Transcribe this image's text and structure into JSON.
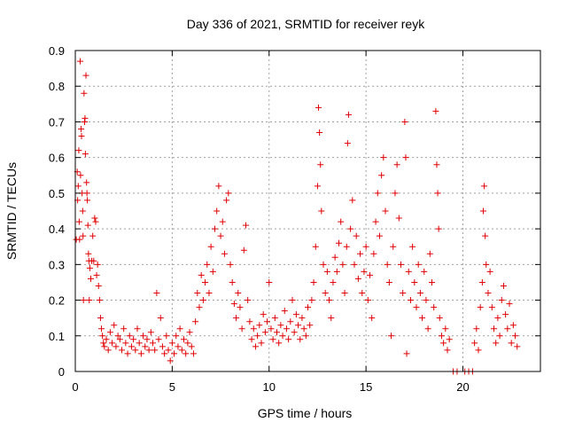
{
  "chart_data": {
    "type": "scatter",
    "title": "Day 336 of 2021, SRMTID for receiver reyk",
    "xlabel": "GPS time / hours",
    "ylabel": "SRMTID / TECUs",
    "xlim": [
      0,
      24
    ],
    "ylim": [
      0,
      0.9
    ],
    "xticks": [
      0,
      5,
      10,
      15,
      20
    ],
    "xtick_labels": [
      "0",
      "5",
      "10",
      "15",
      "20"
    ],
    "yticks": [
      0,
      0.1,
      0.2,
      0.3,
      0.4,
      0.5,
      0.6,
      0.7,
      0.8,
      0.9
    ],
    "ytick_labels": [
      "0",
      "0.1",
      "0.2",
      "0.3",
      "0.4",
      "0.5",
      "0.6",
      "0.7",
      "0.8",
      "0.9"
    ],
    "grid": true,
    "marker": "+",
    "marker_color": "#e00000",
    "series": [
      {
        "name": "SRMTID",
        "points": [
          [
            0.05,
            0.37
          ],
          [
            0.1,
            0.56
          ],
          [
            0.12,
            0.48
          ],
          [
            0.15,
            0.52
          ],
          [
            0.18,
            0.62
          ],
          [
            0.2,
            0.42
          ],
          [
            0.22,
            0.37
          ],
          [
            0.25,
            0.87
          ],
          [
            0.27,
            0.55
          ],
          [
            0.3,
            0.68
          ],
          [
            0.32,
            0.66
          ],
          [
            0.35,
            0.5
          ],
          [
            0.38,
            0.45
          ],
          [
            0.4,
            0.38
          ],
          [
            0.42,
            0.2
          ],
          [
            0.45,
            0.78
          ],
          [
            0.48,
            0.7
          ],
          [
            0.5,
            0.71
          ],
          [
            0.52,
            0.61
          ],
          [
            0.55,
            0.83
          ],
          [
            0.58,
            0.53
          ],
          [
            0.6,
            0.5
          ],
          [
            0.62,
            0.48
          ],
          [
            0.65,
            0.41
          ],
          [
            0.68,
            0.33
          ],
          [
            0.7,
            0.31
          ],
          [
            0.72,
            0.2
          ],
          [
            0.75,
            0.29
          ],
          [
            0.8,
            0.26
          ],
          [
            0.85,
            0.31
          ],
          [
            0.9,
            0.38
          ],
          [
            0.95,
            0.31
          ],
          [
            1.0,
            0.43
          ],
          [
            1.05,
            0.42
          ],
          [
            1.1,
            0.27
          ],
          [
            1.15,
            0.3
          ],
          [
            1.2,
            0.24
          ],
          [
            1.25,
            0.2
          ],
          [
            1.3,
            0.15
          ],
          [
            1.35,
            0.12
          ],
          [
            1.4,
            0.1
          ],
          [
            1.45,
            0.08
          ],
          [
            1.5,
            0.07
          ],
          [
            1.6,
            0.09
          ],
          [
            1.7,
            0.06
          ],
          [
            1.8,
            0.11
          ],
          [
            1.9,
            0.08
          ],
          [
            2.0,
            0.13
          ],
          [
            2.1,
            0.07
          ],
          [
            2.2,
            0.1
          ],
          [
            2.3,
            0.09
          ],
          [
            2.4,
            0.06
          ],
          [
            2.5,
            0.12
          ],
          [
            2.6,
            0.08
          ],
          [
            2.7,
            0.05
          ],
          [
            2.8,
            0.1
          ],
          [
            2.9,
            0.07
          ],
          [
            3.0,
            0.09
          ],
          [
            3.1,
            0.06
          ],
          [
            3.2,
            0.12
          ],
          [
            3.3,
            0.08
          ],
          [
            3.4,
            0.05
          ],
          [
            3.5,
            0.1
          ],
          [
            3.6,
            0.07
          ],
          [
            3.7,
            0.09
          ],
          [
            3.8,
            0.06
          ],
          [
            3.9,
            0.11
          ],
          [
            4.0,
            0.08
          ],
          [
            4.1,
            0.06
          ],
          [
            4.2,
            0.22
          ],
          [
            4.3,
            0.09
          ],
          [
            4.4,
            0.15
          ],
          [
            4.5,
            0.07
          ],
          [
            4.6,
            0.05
          ],
          [
            4.7,
            0.1
          ],
          [
            4.8,
            0.06
          ],
          [
            4.9,
            0.03
          ],
          [
            5.0,
            0.08
          ],
          [
            5.1,
            0.05
          ],
          [
            5.2,
            0.1
          ],
          [
            5.3,
            0.07
          ],
          [
            5.4,
            0.12
          ],
          [
            5.5,
            0.06
          ],
          [
            5.6,
            0.09
          ],
          [
            5.7,
            0.05
          ],
          [
            5.8,
            0.08
          ],
          [
            5.9,
            0.11
          ],
          [
            6.0,
            0.07
          ],
          [
            6.1,
            0.05
          ],
          [
            6.2,
            0.14
          ],
          [
            6.3,
            0.22
          ],
          [
            6.4,
            0.18
          ],
          [
            6.5,
            0.27
          ],
          [
            6.6,
            0.2
          ],
          [
            6.7,
            0.25
          ],
          [
            6.8,
            0.3
          ],
          [
            6.9,
            0.22
          ],
          [
            7.0,
            0.35
          ],
          [
            7.1,
            0.28
          ],
          [
            7.2,
            0.4
          ],
          [
            7.3,
            0.45
          ],
          [
            7.4,
            0.52
          ],
          [
            7.5,
            0.38
          ],
          [
            7.6,
            0.42
          ],
          [
            7.7,
            0.33
          ],
          [
            7.8,
            0.48
          ],
          [
            7.9,
            0.5
          ],
          [
            8.0,
            0.3
          ],
          [
            8.1,
            0.25
          ],
          [
            8.2,
            0.19
          ],
          [
            8.3,
            0.15
          ],
          [
            8.4,
            0.22
          ],
          [
            8.5,
            0.18
          ],
          [
            8.6,
            0.12
          ],
          [
            8.7,
            0.34
          ],
          [
            8.8,
            0.41
          ],
          [
            8.9,
            0.2
          ],
          [
            9.0,
            0.14
          ],
          [
            9.1,
            0.09
          ],
          [
            9.2,
            0.12
          ],
          [
            9.3,
            0.07
          ],
          [
            9.4,
            0.1
          ],
          [
            9.5,
            0.13
          ],
          [
            9.6,
            0.08
          ],
          [
            9.7,
            0.16
          ],
          [
            9.8,
            0.11
          ],
          [
            9.9,
            0.14
          ],
          [
            10.0,
            0.25
          ],
          [
            10.1,
            0.12
          ],
          [
            10.2,
            0.09
          ],
          [
            10.3,
            0.15
          ],
          [
            10.4,
            0.11
          ],
          [
            10.5,
            0.08
          ],
          [
            10.6,
            0.13
          ],
          [
            10.7,
            0.1
          ],
          [
            10.8,
            0.17
          ],
          [
            10.9,
            0.12
          ],
          [
            11.0,
            0.09
          ],
          [
            11.1,
            0.14
          ],
          [
            11.2,
            0.2
          ],
          [
            11.3,
            0.11
          ],
          [
            11.4,
            0.16
          ],
          [
            11.5,
            0.13
          ],
          [
            11.6,
            0.09
          ],
          [
            11.7,
            0.15
          ],
          [
            11.8,
            0.12
          ],
          [
            11.9,
            0.1
          ],
          [
            12.0,
            0.18
          ],
          [
            12.1,
            0.13
          ],
          [
            12.2,
            0.2
          ],
          [
            12.3,
            0.25
          ],
          [
            12.4,
            0.35
          ],
          [
            12.5,
            0.52
          ],
          [
            12.55,
            0.74
          ],
          [
            12.6,
            0.67
          ],
          [
            12.65,
            0.58
          ],
          [
            12.7,
            0.45
          ],
          [
            12.8,
            0.3
          ],
          [
            12.9,
            0.22
          ],
          [
            13.0,
            0.28
          ],
          [
            13.1,
            0.2
          ],
          [
            13.2,
            0.15
          ],
          [
            13.3,
            0.25
          ],
          [
            13.4,
            0.32
          ],
          [
            13.5,
            0.28
          ],
          [
            13.6,
            0.36
          ],
          [
            13.7,
            0.42
          ],
          [
            13.8,
            0.3
          ],
          [
            13.9,
            0.22
          ],
          [
            14.0,
            0.35
          ],
          [
            14.05,
            0.64
          ],
          [
            14.1,
            0.72
          ],
          [
            14.2,
            0.4
          ],
          [
            14.3,
            0.48
          ],
          [
            14.4,
            0.3
          ],
          [
            14.5,
            0.38
          ],
          [
            14.6,
            0.26
          ],
          [
            14.7,
            0.33
          ],
          [
            14.8,
            0.22
          ],
          [
            14.9,
            0.28
          ],
          [
            15.0,
            0.35
          ],
          [
            15.1,
            0.2
          ],
          [
            15.2,
            0.27
          ],
          [
            15.3,
            0.15
          ],
          [
            15.4,
            0.33
          ],
          [
            15.5,
            0.42
          ],
          [
            15.6,
            0.5
          ],
          [
            15.7,
            0.38
          ],
          [
            15.8,
            0.55
          ],
          [
            15.9,
            0.6
          ],
          [
            16.0,
            0.45
          ],
          [
            16.1,
            0.3
          ],
          [
            16.2,
            0.25
          ],
          [
            16.3,
            0.1
          ],
          [
            16.4,
            0.35
          ],
          [
            16.5,
            0.5
          ],
          [
            16.6,
            0.58
          ],
          [
            16.7,
            0.43
          ],
          [
            16.8,
            0.3
          ],
          [
            16.9,
            0.22
          ],
          [
            17.0,
            0.7
          ],
          [
            17.05,
            0.6
          ],
          [
            17.1,
            0.05
          ],
          [
            17.2,
            0.28
          ],
          [
            17.3,
            0.2
          ],
          [
            17.4,
            0.35
          ],
          [
            17.5,
            0.25
          ],
          [
            17.6,
            0.18
          ],
          [
            17.7,
            0.3
          ],
          [
            17.8,
            0.22
          ],
          [
            17.9,
            0.15
          ],
          [
            18.0,
            0.28
          ],
          [
            18.1,
            0.2
          ],
          [
            18.2,
            0.12
          ],
          [
            18.3,
            0.33
          ],
          [
            18.4,
            0.25
          ],
          [
            18.5,
            0.18
          ],
          [
            18.6,
            0.73
          ],
          [
            18.65,
            0.58
          ],
          [
            18.7,
            0.5
          ],
          [
            18.75,
            0.4
          ],
          [
            18.8,
            0.15
          ],
          [
            18.9,
            0.1
          ],
          [
            19.0,
            0.08
          ],
          [
            19.1,
            0.12
          ],
          [
            19.2,
            0.06
          ],
          [
            19.3,
            0.09
          ],
          [
            19.5,
            0.0
          ],
          [
            19.7,
            0.0
          ],
          [
            20.1,
            0.0
          ],
          [
            20.3,
            0.0
          ],
          [
            20.5,
            0.0
          ],
          [
            20.6,
            0.08
          ],
          [
            20.7,
            0.12
          ],
          [
            20.8,
            0.06
          ],
          [
            20.9,
            0.18
          ],
          [
            21.0,
            0.25
          ],
          [
            21.05,
            0.45
          ],
          [
            21.1,
            0.52
          ],
          [
            21.15,
            0.38
          ],
          [
            21.2,
            0.3
          ],
          [
            21.3,
            0.22
          ],
          [
            21.4,
            0.28
          ],
          [
            21.5,
            0.18
          ],
          [
            21.6,
            0.12
          ],
          [
            21.7,
            0.08
          ],
          [
            21.8,
            0.15
          ],
          [
            21.9,
            0.1
          ],
          [
            22.0,
            0.2
          ],
          [
            22.1,
            0.24
          ],
          [
            22.2,
            0.16
          ],
          [
            22.3,
            0.12
          ],
          [
            22.4,
            0.19
          ],
          [
            22.5,
            0.08
          ],
          [
            22.6,
            0.13
          ],
          [
            22.7,
            0.1
          ],
          [
            22.8,
            0.07
          ]
        ]
      }
    ]
  }
}
